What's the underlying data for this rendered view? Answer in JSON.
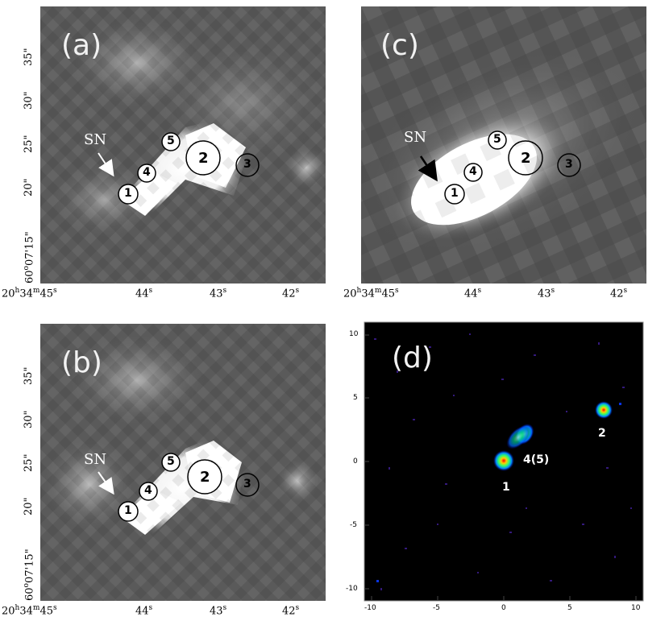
{
  "panels": {
    "a": {
      "label": "(a)"
    },
    "b": {
      "label": "(b)"
    },
    "c": {
      "label": "(c)"
    },
    "d": {
      "label": "(d)"
    }
  },
  "annotations": {
    "sn": "SN",
    "sources": [
      "1",
      "2",
      "3",
      "4",
      "5"
    ],
    "d_sources": [
      "1",
      "2",
      "4(5)"
    ]
  },
  "ra_axis": {
    "ticks": [
      {
        "h": "20",
        "m": "34",
        "s": "45"
      },
      {
        "s": "44"
      },
      {
        "s": "43"
      },
      {
        "s": "42"
      }
    ]
  },
  "dec_axis": {
    "ticks": [
      {
        "d": "60",
        "m": "07",
        "s": "15"
      },
      {
        "s": "20"
      },
      {
        "s": "25"
      },
      {
        "s": "30"
      },
      {
        "s": "35"
      }
    ]
  },
  "d_axis": {
    "x_ticks": [
      "-10",
      "-5",
      "0",
      "5",
      "10"
    ],
    "y_ticks": [
      "10",
      "5",
      "0",
      "-5",
      "-10"
    ]
  },
  "colors": {
    "background_gray": "#555555",
    "white_blob": "#ffffff",
    "arrow_white": "#ffffff",
    "arrow_black": "#000000",
    "d_background": "#000000"
  }
}
